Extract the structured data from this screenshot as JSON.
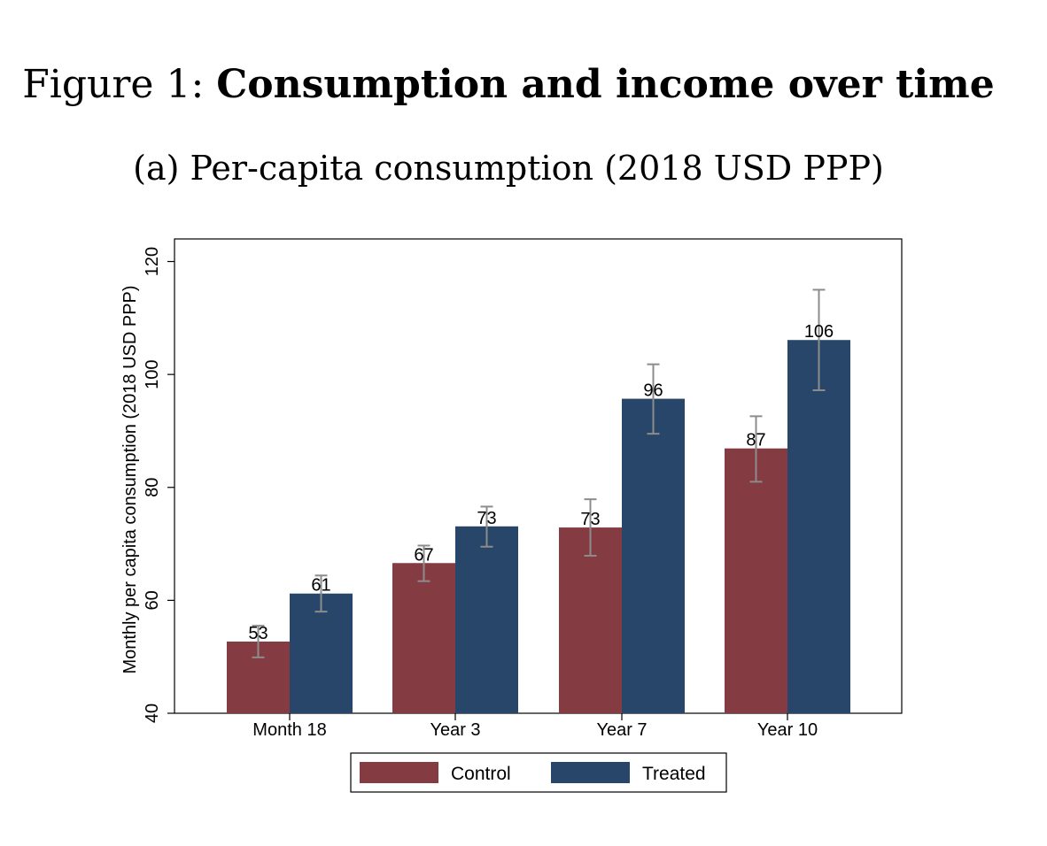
{
  "figure": {
    "label": "Figure 1:",
    "title": "Consumption and income over time"
  },
  "panel": {
    "subtitle": "(a) Per-capita consumption (2018 USD PPP)"
  },
  "colors": {
    "control": "#843b41",
    "treated": "#284669",
    "errorbar": "#8c8c8c"
  },
  "chart_data": {
    "type": "bar",
    "categories": [
      "Month 18",
      "Year 3",
      "Year 7",
      "Year 10"
    ],
    "series": [
      {
        "name": "Control",
        "values": [
          52.7,
          66.6,
          72.9,
          86.9
        ],
        "ci_low": [
          49.9,
          63.4,
          67.9,
          81.0
        ],
        "ci_high": [
          55.5,
          69.7,
          77.9,
          92.6
        ],
        "labels": [
          "53",
          "67",
          "73",
          "87"
        ]
      },
      {
        "name": "Treated",
        "values": [
          61.2,
          73.1,
          95.7,
          106.1
        ],
        "ci_low": [
          58.0,
          69.5,
          89.5,
          97.2
        ],
        "ci_high": [
          64.4,
          76.6,
          101.8,
          115.0
        ],
        "labels": [
          "61",
          "73",
          "96",
          "106"
        ]
      }
    ],
    "xlabel": "",
    "ylabel": "Monthly per capita consumption (2018 USD PPP)",
    "ylim": [
      40,
      124
    ],
    "yticks": [
      40,
      60,
      80,
      100,
      120
    ],
    "grid": false,
    "legend": "bottom"
  }
}
